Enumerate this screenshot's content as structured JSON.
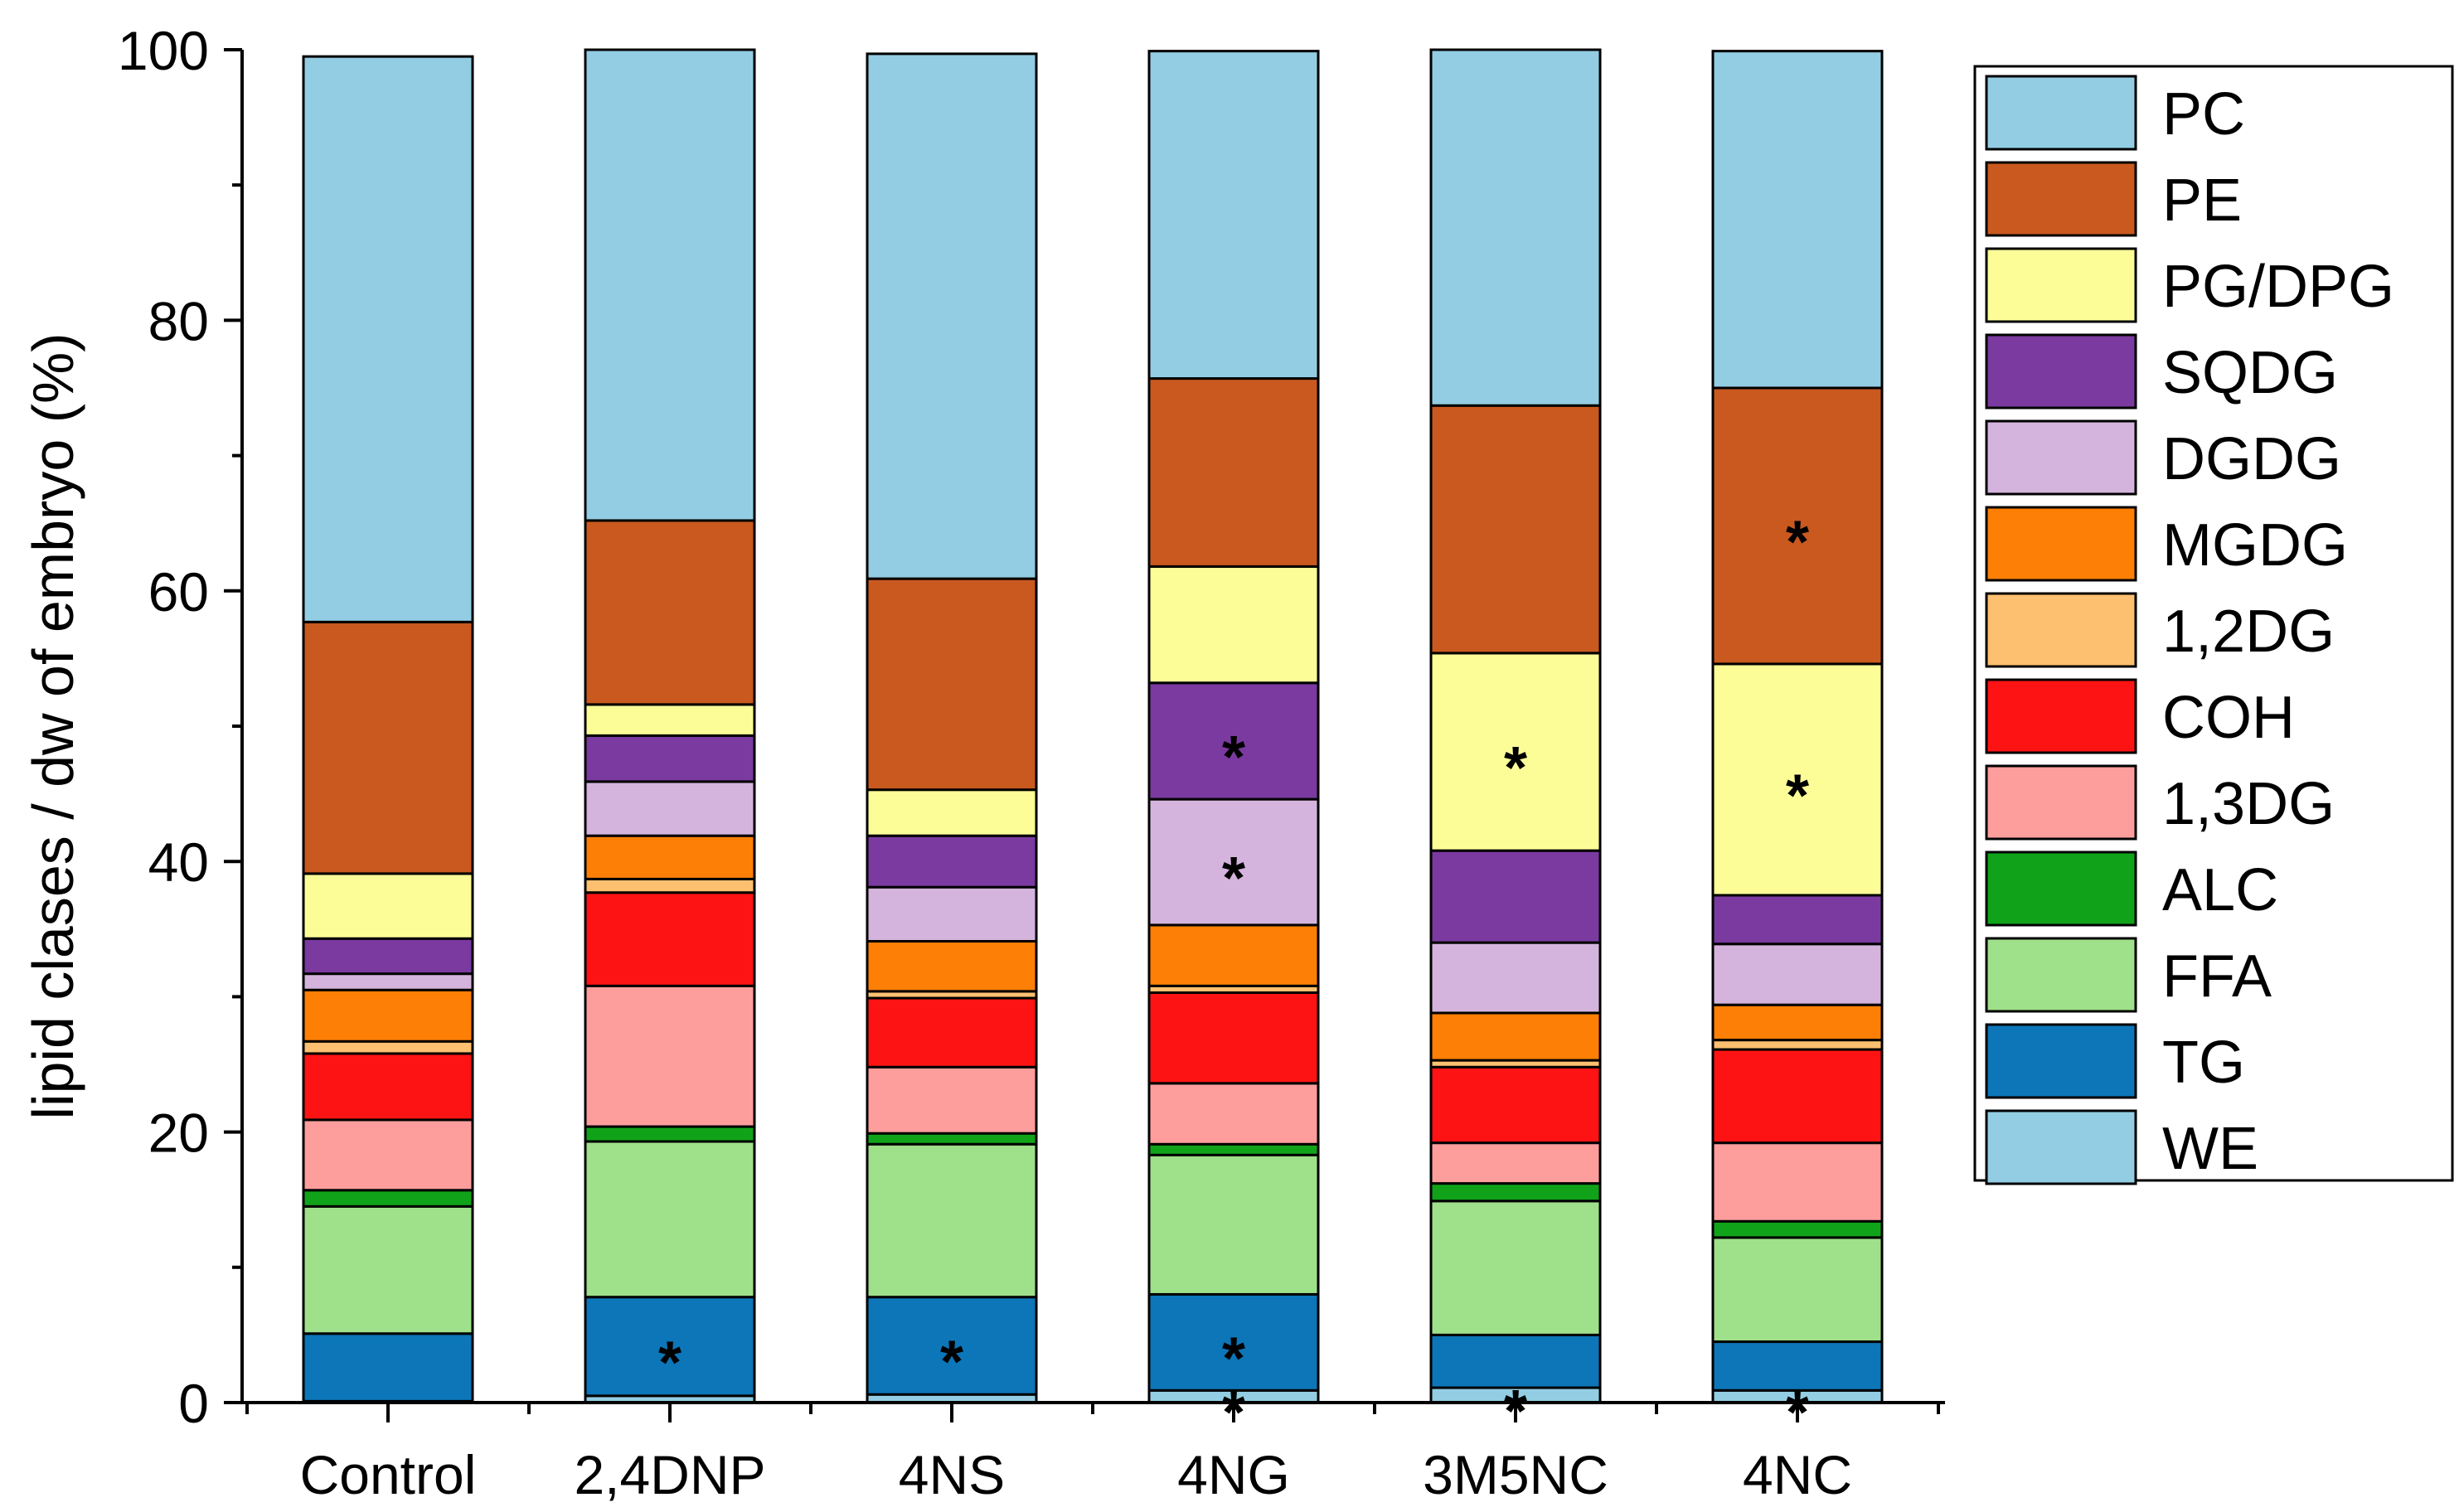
{
  "chart_data": {
    "type": "bar",
    "stacked": true,
    "title": "",
    "xlabel": "",
    "ylabel": "lipid clases / dw of embryo (%)",
    "ylim": [
      0,
      100
    ],
    "yticks": [
      "0",
      "20",
      "40",
      "60",
      "80",
      "100"
    ],
    "ytick_values": [
      0,
      20,
      40,
      60,
      80,
      100
    ],
    "categories": [
      "Control",
      "2,4DNP",
      "4NS",
      "4NG",
      "3M5NC",
      "4NC"
    ],
    "legend_position": "right",
    "series": [
      {
        "name": "WE",
        "color": "#93CDE3",
        "values": [
          0.1,
          0.5,
          0.6,
          0.9,
          1.1,
          0.9
        ],
        "stars": [
          false,
          false,
          false,
          true,
          true,
          true
        ]
      },
      {
        "name": "TG",
        "color": "#0C76B8",
        "values": [
          5.0,
          7.3,
          7.2,
          7.1,
          3.9,
          3.6
        ],
        "stars": [
          false,
          true,
          true,
          true,
          false,
          false
        ]
      },
      {
        "name": "FFA",
        "color": "#9FE08A",
        "values": [
          9.4,
          11.5,
          11.3,
          10.3,
          9.9,
          7.7
        ],
        "stars": [
          false,
          false,
          false,
          false,
          false,
          false
        ]
      },
      {
        "name": "ALC",
        "color": "#10A31A",
        "values": [
          1.2,
          1.1,
          0.8,
          0.8,
          1.3,
          1.2
        ],
        "stars": [
          false,
          false,
          false,
          false,
          false,
          false
        ]
      },
      {
        "name": "1,3DG",
        "color": "#FD9E9D",
        "values": [
          5.2,
          10.4,
          4.9,
          4.5,
          3.0,
          5.8
        ],
        "stars": [
          false,
          false,
          false,
          false,
          false,
          false
        ]
      },
      {
        "name": "COH",
        "color": "#FD1313",
        "values": [
          4.9,
          6.9,
          5.1,
          6.7,
          5.6,
          6.9
        ],
        "stars": [
          false,
          false,
          false,
          false,
          false,
          false
        ]
      },
      {
        "name": "1,2DG",
        "color": "#FDC070",
        "values": [
          0.9,
          1.0,
          0.5,
          0.5,
          0.5,
          0.7
        ],
        "stars": [
          false,
          false,
          false,
          false,
          false,
          false
        ]
      },
      {
        "name": "MGDG",
        "color": "#FD7F05",
        "values": [
          3.8,
          3.2,
          3.7,
          4.5,
          3.5,
          2.6
        ],
        "stars": [
          false,
          false,
          false,
          false,
          false,
          false
        ]
      },
      {
        "name": "DGDG",
        "color": "#D4B4DC",
        "values": [
          1.2,
          4.0,
          4.0,
          9.3,
          5.2,
          4.5
        ],
        "stars": [
          false,
          false,
          false,
          true,
          false,
          false
        ]
      },
      {
        "name": "SQDG",
        "color": "#7A3AA0",
        "values": [
          2.6,
          3.4,
          3.8,
          8.6,
          6.8,
          3.6
        ],
        "stars": [
          false,
          false,
          false,
          true,
          false,
          false
        ]
      },
      {
        "name": "PG/DPG",
        "color": "#FDFD98",
        "values": [
          4.8,
          2.3,
          3.4,
          8.6,
          14.6,
          17.1
        ],
        "stars": [
          false,
          false,
          false,
          false,
          true,
          true
        ]
      },
      {
        "name": "PE",
        "color": "#C9591F",
        "values": [
          18.6,
          13.6,
          15.6,
          13.9,
          18.3,
          20.4
        ],
        "stars": [
          false,
          false,
          false,
          false,
          false,
          true
        ]
      },
      {
        "name": "PC",
        "color": "#93CDE3",
        "values": [
          41.8,
          34.8,
          38.8,
          24.2,
          26.3,
          24.9
        ],
        "stars": [
          false,
          false,
          false,
          false,
          false,
          false
        ]
      }
    ],
    "significance_marker": "*"
  }
}
